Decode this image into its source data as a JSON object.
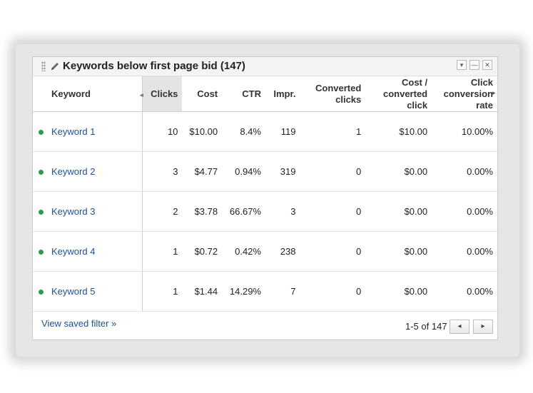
{
  "widget": {
    "title": "Keywords below first page bid (147)",
    "icons": {
      "drag": "drag-handle-icon",
      "edit": "pencil-icon",
      "menu": "dropdown-icon",
      "minimize": "minimize-icon",
      "close": "close-icon"
    },
    "menu_glyph": "▾",
    "minimize_glyph": "—",
    "close_glyph": "✕"
  },
  "table": {
    "headers": {
      "keyword": "Keyword",
      "clicks": "Clicks",
      "cost": "Cost",
      "ctr": "CTR",
      "impr": "Impr.",
      "converted_clicks": "Converted clicks",
      "cost_per_converted_click": "Cost / converted click",
      "click_conversion_rate": "Click conversion rate"
    },
    "rows": [
      {
        "keyword": "Keyword 1",
        "clicks": "10",
        "cost": "$10.00",
        "ctr": "8.4%",
        "impr": "119",
        "converted_clicks": "1",
        "cost_per_converted_click": "$10.00",
        "click_conversion_rate": "10.00%"
      },
      {
        "keyword": "Keyword 2",
        "clicks": "3",
        "cost": "$4.77",
        "ctr": "0.94%",
        "impr": "319",
        "converted_clicks": "0",
        "cost_per_converted_click": "$0.00",
        "click_conversion_rate": "0.00%"
      },
      {
        "keyword": "Keyword 3",
        "clicks": "2",
        "cost": "$3.78",
        "ctr": "66.67%",
        "impr": "3",
        "converted_clicks": "0",
        "cost_per_converted_click": "$0.00",
        "click_conversion_rate": "0.00%"
      },
      {
        "keyword": "Keyword 4",
        "clicks": "1",
        "cost": "$0.72",
        "ctr": "0.42%",
        "impr": "238",
        "converted_clicks": "0",
        "cost_per_converted_click": "$0.00",
        "click_conversion_rate": "0.00%"
      },
      {
        "keyword": "Keyword 5",
        "clicks": "1",
        "cost": "$1.44",
        "ctr": "14.29%",
        "impr": "7",
        "converted_clicks": "0",
        "cost_per_converted_click": "$0.00",
        "click_conversion_rate": "0.00%"
      }
    ],
    "status_color": "#2b9a4a"
  },
  "footer": {
    "saved_filter_link": "View saved filter »",
    "range_text": "1-5 of 147",
    "prev_glyph": "◂",
    "next_glyph": "▸"
  },
  "colors": {
    "link": "#1a4fa8",
    "sorted_header_bg": "#e4e4e4"
  }
}
